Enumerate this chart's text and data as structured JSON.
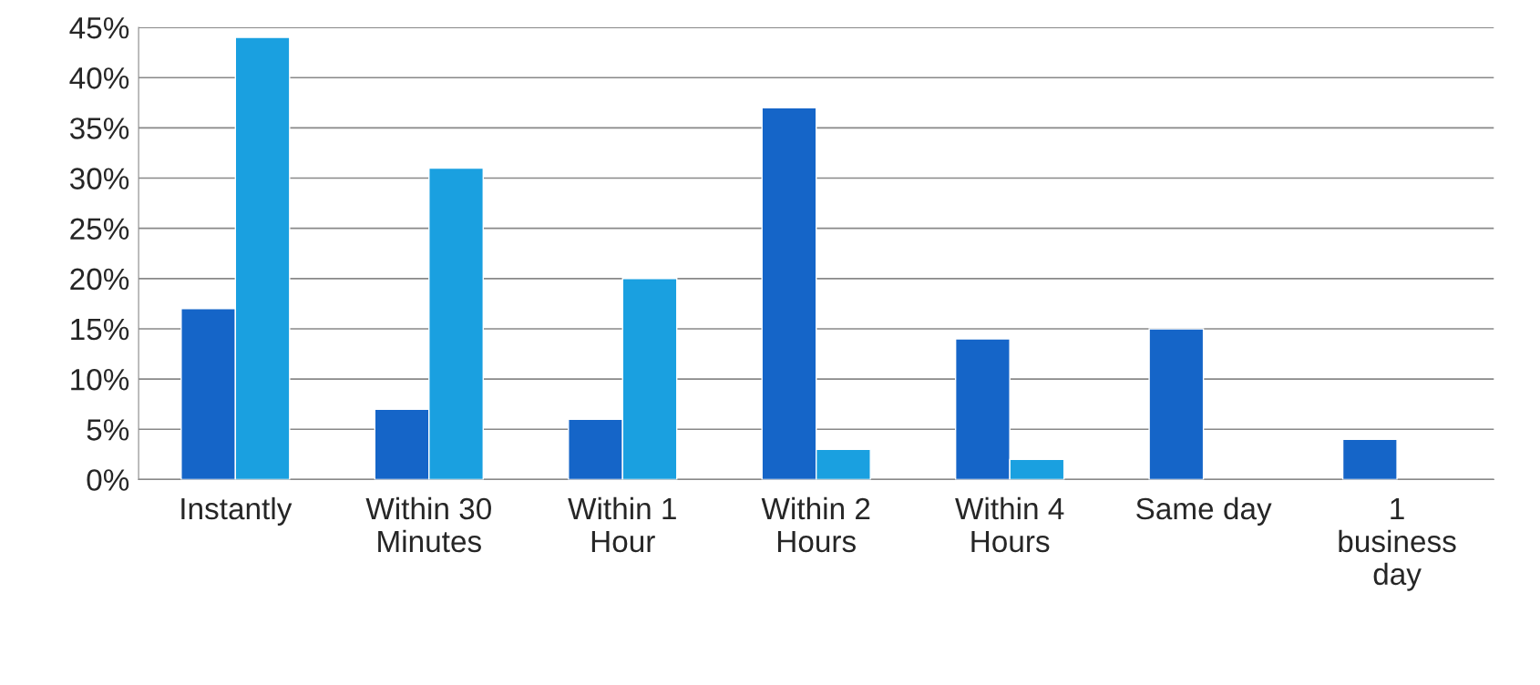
{
  "chart_data": {
    "type": "bar",
    "categories": [
      "Instantly",
      "Within 30\nMinutes",
      "Within 1\nHour",
      "Within 2\nHours",
      "Within 4\nHours",
      "Same day",
      "1\nbusiness\nday"
    ],
    "series": [
      {
        "color": "#1565c8",
        "values": [
          17,
          7,
          6,
          37,
          14,
          15,
          4
        ]
      },
      {
        "color": "#1aa0e0",
        "values": [
          44,
          31,
          20,
          3,
          2,
          null,
          null
        ]
      }
    ],
    "ylim": [
      0,
      45
    ],
    "yticks": [
      {
        "value": 0,
        "label": "0%"
      },
      {
        "value": 5,
        "label": "5%"
      },
      {
        "value": 10,
        "label": "10%"
      },
      {
        "value": 15,
        "label": "15%"
      },
      {
        "value": 20,
        "label": "20%"
      },
      {
        "value": 25,
        "label": "25%"
      },
      {
        "value": 30,
        "label": "30%"
      },
      {
        "value": 35,
        "label": "35%"
      },
      {
        "value": 40,
        "label": "40%"
      },
      {
        "value": 45,
        "label": "45%"
      }
    ],
    "grid": "y",
    "legend": false
  }
}
